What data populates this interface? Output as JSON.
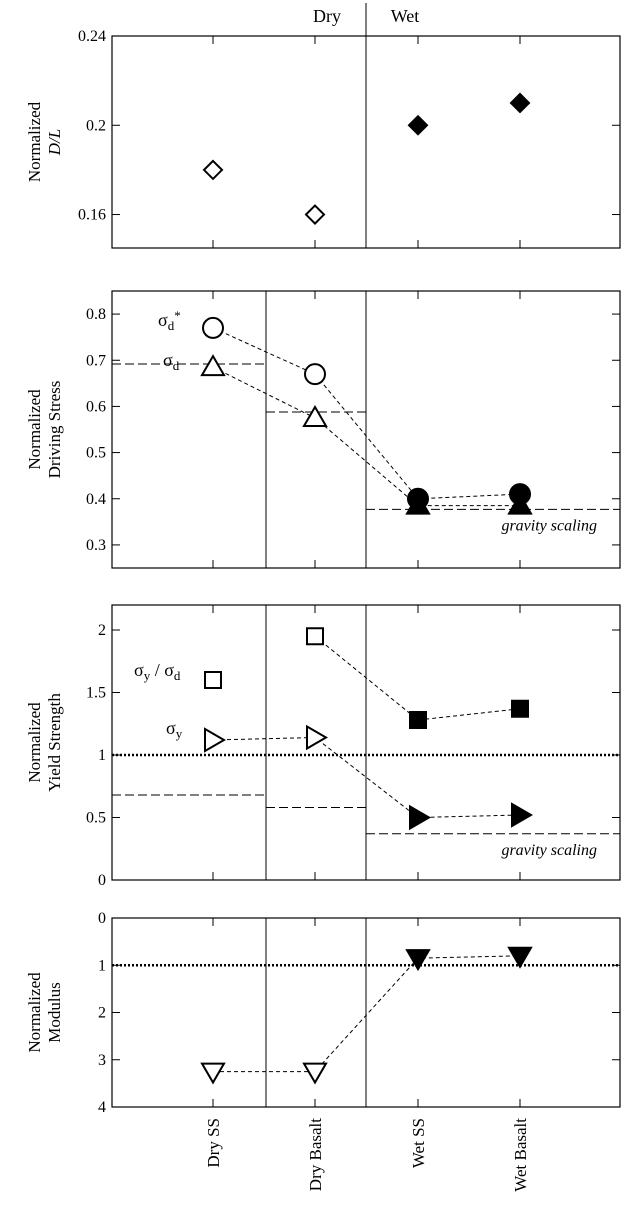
{
  "header": {
    "dry": "Dry",
    "wet": "Wet"
  },
  "categories": [
    "Dry SS",
    "Dry Basalt",
    "Wet SS",
    "Wet Basalt"
  ],
  "chart_data": [
    {
      "type": "scatter",
      "ylabel_lines": [
        "Normalized",
        "D/L"
      ],
      "ylim": [
        0.145,
        0.24
      ],
      "yticks": [
        "0.16",
        "0.2",
        "0.24"
      ],
      "ytick_values": [
        0.16,
        0.2,
        0.24
      ],
      "series": [
        {
          "marker": "diamond",
          "values": [
            0.18,
            0.16,
            0.2,
            0.21
          ],
          "filled": [
            false,
            false,
            true,
            true
          ],
          "connected": false
        }
      ]
    },
    {
      "type": "scatter",
      "ylabel_lines": [
        "Normalized",
        "Driving Stress"
      ],
      "ylim": [
        0.25,
        0.85
      ],
      "yticks": [
        "0.3",
        "0.4",
        "0.5",
        "0.6",
        "0.7",
        "0.8"
      ],
      "ytick_values": [
        0.3,
        0.4,
        0.5,
        0.6,
        0.7,
        0.8
      ],
      "series": [
        {
          "name": "σd*",
          "marker": "circle",
          "values": [
            0.77,
            0.67,
            0.4,
            0.41
          ],
          "filled": [
            false,
            false,
            true,
            true
          ],
          "connected": true
        },
        {
          "name": "σd",
          "marker": "triangle-up",
          "values": [
            0.685,
            0.575,
            0.385,
            0.385
          ],
          "filled": [
            false,
            false,
            true,
            true
          ],
          "connected": true
        }
      ],
      "reference_levels": [
        {
          "from_category": 0,
          "to_category": 1,
          "value": 0.692
        },
        {
          "from_category": 1,
          "to_category": 2,
          "value": 0.588
        },
        {
          "from_category": 2,
          "to_category": 4,
          "value": 0.377
        }
      ],
      "annotation": "gravity scaling"
    },
    {
      "type": "scatter",
      "ylabel_lines": [
        "Normalized",
        "Yield Strength"
      ],
      "ylim": [
        0,
        2.2
      ],
      "yticks": [
        "0",
        "0.5",
        "1",
        "1.5",
        "2"
      ],
      "ytick_values": [
        0,
        0.5,
        1,
        1.5,
        2
      ],
      "series": [
        {
          "name": "σy / σd",
          "marker": "square",
          "values": [
            1.6,
            1.95,
            1.28,
            1.37
          ],
          "filled": [
            false,
            false,
            true,
            true
          ],
          "connected": true,
          "connect_from": 1
        },
        {
          "name": "σy",
          "marker": "triangle-right",
          "values": [
            1.12,
            1.14,
            0.5,
            0.52
          ],
          "filled": [
            false,
            false,
            true,
            true
          ],
          "connected": true
        }
      ],
      "reference_levels": [
        {
          "from_category": 0,
          "to_category": 1,
          "value": 0.68
        },
        {
          "from_category": 1,
          "to_category": 2,
          "value": 0.58
        },
        {
          "from_category": 2,
          "to_category": 4,
          "value": 0.37
        }
      ],
      "unity_line": 1,
      "annotation": "gravity scaling"
    },
    {
      "type": "scatter",
      "ylabel_lines": [
        "Normalized",
        "Modulus"
      ],
      "ylim": [
        0,
        4
      ],
      "y_inverted": true,
      "yticks": [
        "0",
        "1",
        "2",
        "3",
        "4"
      ],
      "ytick_values": [
        0,
        1,
        2,
        3,
        4
      ],
      "series": [
        {
          "marker": "triangle-down",
          "values": [
            3.25,
            3.25,
            0.85,
            0.8
          ],
          "filled": [
            false,
            false,
            true,
            true
          ],
          "connected": true
        }
      ],
      "unity_line": 1
    }
  ]
}
